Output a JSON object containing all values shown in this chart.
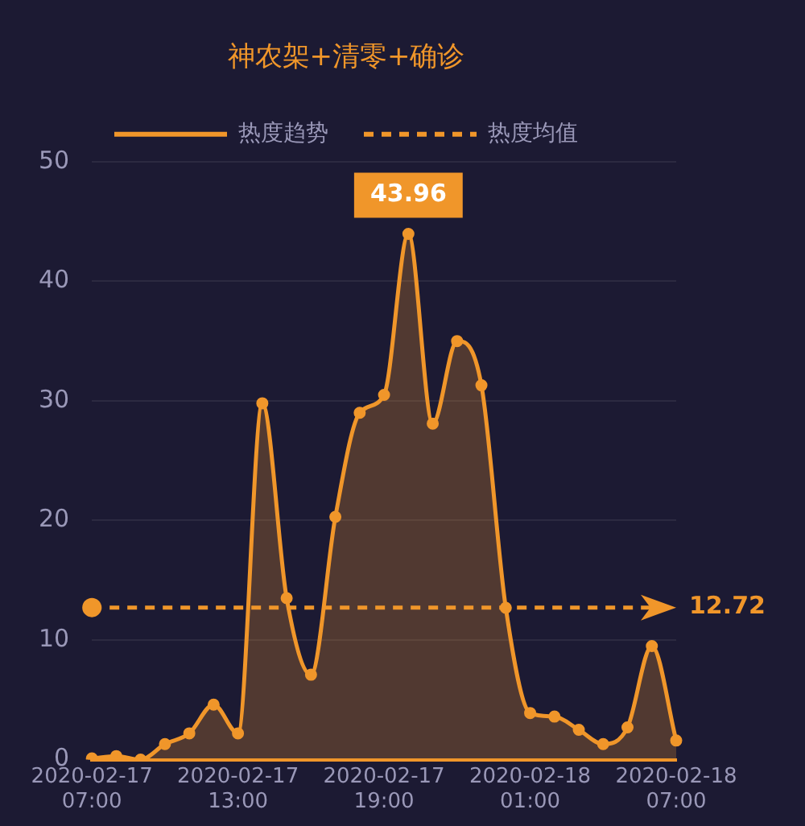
{
  "chart_data": {
    "type": "area",
    "title": "神农架+清零+确诊",
    "categories": [
      "2020-02-17 07:00",
      null,
      null,
      null,
      null,
      null,
      "2020-02-17 13:00",
      null,
      null,
      null,
      null,
      null,
      "2020-02-17 19:00",
      null,
      null,
      null,
      null,
      null,
      "2020-02-18 01:00",
      null,
      null,
      null,
      null,
      null,
      "2020-02-18 07:00"
    ],
    "ylim": [
      0,
      50
    ],
    "yticks": [
      0,
      10,
      20,
      30,
      40,
      50
    ],
    "series": [
      {
        "name": "热度趋势",
        "color": "#f0962a",
        "values": [
          0.1,
          0.3,
          0,
          1.3,
          2.2,
          4.6,
          2.2,
          29.8,
          13.5,
          7.1,
          20.3,
          29,
          30.5,
          43.96,
          28.1,
          35,
          31.3,
          12.7,
          3.9,
          3.6,
          2.5,
          1.3,
          2.7,
          9.5,
          1.6
        ],
        "value_labels": [
          null,
          null,
          null,
          null,
          null,
          null,
          null,
          null,
          null,
          null,
          null,
          null,
          null,
          "43.96",
          null,
          null,
          null,
          null,
          null,
          null,
          null,
          null,
          null,
          null,
          null
        ]
      },
      {
        "name": "热度均值",
        "type": "line",
        "color": "#f0962a",
        "line_style": "dashed",
        "marker": "none",
        "values": [
          12.72,
          12.72,
          12.72,
          12.72,
          12.72,
          12.72,
          12.72,
          12.72,
          12.72,
          12.72,
          12.72,
          12.72,
          12.72,
          12.72,
          12.72,
          12.72,
          12.72,
          12.72,
          12.72,
          12.72,
          12.72,
          12.72,
          12.72,
          12.72,
          12.72
        ],
        "value_labels": [
          null,
          null,
          null,
          null,
          null,
          null,
          null,
          null,
          null,
          null,
          null,
          null,
          null,
          null,
          null,
          null,
          null,
          null,
          null,
          null,
          null,
          null,
          null,
          null,
          "12.72"
        ]
      }
    ],
    "grid": "y",
    "legend": "top",
    "marker": "circle",
    "line_style": "solid"
  }
}
